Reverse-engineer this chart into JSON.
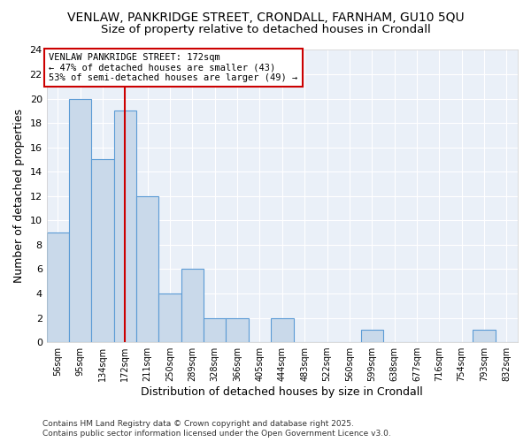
{
  "title": "VENLAW, PANKRIDGE STREET, CRONDALL, FARNHAM, GU10 5QU",
  "subtitle": "Size of property relative to detached houses in Crondall",
  "xlabel": "Distribution of detached houses by size in Crondall",
  "ylabel": "Number of detached properties",
  "bin_labels": [
    "56sqm",
    "95sqm",
    "134sqm",
    "172sqm",
    "211sqm",
    "250sqm",
    "289sqm",
    "328sqm",
    "366sqm",
    "405sqm",
    "444sqm",
    "483sqm",
    "522sqm",
    "560sqm",
    "599sqm",
    "638sqm",
    "677sqm",
    "716sqm",
    "754sqm",
    "793sqm",
    "832sqm"
  ],
  "bar_values": [
    9,
    20,
    15,
    19,
    12,
    4,
    6,
    2,
    2,
    0,
    2,
    0,
    0,
    0,
    1,
    0,
    0,
    0,
    0,
    1,
    0
  ],
  "ylim": [
    0,
    24
  ],
  "yticks": [
    0,
    2,
    4,
    6,
    8,
    10,
    12,
    14,
    16,
    18,
    20,
    22,
    24
  ],
  "bar_color": "#c9d9ea",
  "bar_edge_color": "#5b9bd5",
  "vline_x": 3,
  "vline_color": "#cc0000",
  "annotation_title": "VENLAW PANKRIDGE STREET: 172sqm",
  "annotation_line1": "← 47% of detached houses are smaller (43)",
  "annotation_line2": "53% of semi-detached houses are larger (49) →",
  "annotation_box_color": "#ffffff",
  "annotation_box_edge": "#cc0000",
  "footer1": "Contains HM Land Registry data © Crown copyright and database right 2025.",
  "footer2": "Contains public sector information licensed under the Open Government Licence v3.0.",
  "bg_color": "#ffffff",
  "plot_bg_color": "#eaf0f8",
  "title_fontsize": 10,
  "subtitle_fontsize": 9.5
}
